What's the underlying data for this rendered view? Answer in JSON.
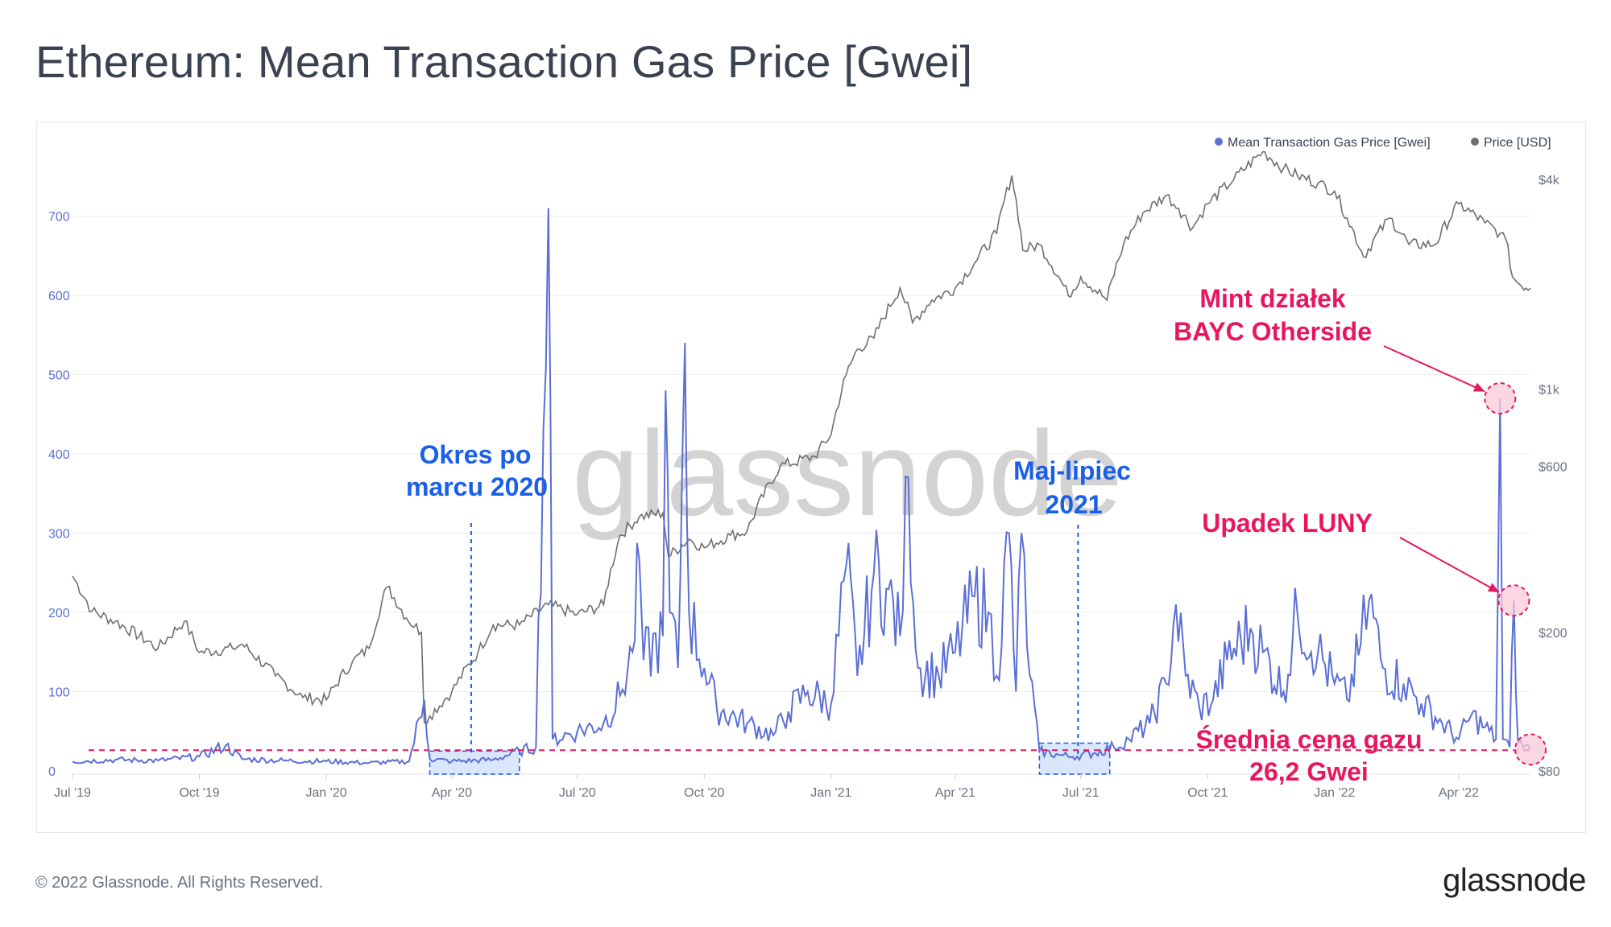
{
  "title": "Ethereum: Mean Transaction Gas Price [Gwei]",
  "footer": {
    "copyright": "© 2022 Glassnode. All Rights Reserved.",
    "logo": "glassnode"
  },
  "watermark": "glassnode",
  "colors": {
    "gas": "#5b6fd6",
    "price": "#6f6f6f",
    "annot_blue": "#1a5fe8",
    "annot_red": "#e8175d"
  },
  "chart_data": {
    "type": "line",
    "title": "Ethereum: Mean Transaction Gas Price [Gwei]",
    "legend": {
      "placement": "top-right",
      "items": [
        "Mean Transaction Gas Price [Gwei]",
        "Price [USD]"
      ]
    },
    "x_ticks": [
      "Jul '19",
      "Oct '19",
      "Jan '20",
      "Apr '20",
      "Jul '20",
      "Oct '20",
      "Jan '21",
      "Apr '21",
      "Jul '21",
      "Oct '21",
      "Jan '22",
      "Apr '22"
    ],
    "x_range": [
      "2019-07-01",
      "2022-05-23"
    ],
    "y_left": {
      "ticks": [
        0,
        100,
        200,
        300,
        400,
        500,
        600,
        700
      ],
      "range": [
        0,
        800
      ],
      "grid": true
    },
    "y_right": {
      "ticks": [
        "$80",
        "$200",
        "$600",
        "$1k",
        "$4k"
      ],
      "tick_values": [
        80,
        200,
        600,
        1000,
        4000
      ],
      "scale": "log",
      "range": [
        80,
        5300
      ]
    },
    "series": [
      {
        "name": "Mean Transaction Gas Price [Gwei]",
        "axis": "left",
        "points": [
          [
            "2019-07-01",
            12
          ],
          [
            "2019-08-01",
            14
          ],
          [
            "2019-09-01",
            13
          ],
          [
            "2019-10-01",
            18
          ],
          [
            "2019-10-20",
            32
          ],
          [
            "2019-11-01",
            15
          ],
          [
            "2019-12-01",
            13
          ],
          [
            "2020-01-01",
            12
          ],
          [
            "2020-02-01",
            10
          ],
          [
            "2020-03-01",
            12
          ],
          [
            "2020-03-12",
            90
          ],
          [
            "2020-03-16",
            15
          ],
          [
            "2020-04-01",
            12
          ],
          [
            "2020-05-01",
            14
          ],
          [
            "2020-05-20",
            25
          ],
          [
            "2020-06-01",
            30
          ],
          [
            "2020-06-10",
            710
          ],
          [
            "2020-06-13",
            40
          ],
          [
            "2020-07-01",
            50
          ],
          [
            "2020-07-20",
            60
          ],
          [
            "2020-08-01",
            95
          ],
          [
            "2020-08-10",
            150
          ],
          [
            "2020-08-15",
            265
          ],
          [
            "2020-08-18",
            140
          ],
          [
            "2020-09-01",
            170
          ],
          [
            "2020-09-03",
            480
          ],
          [
            "2020-09-06",
            200
          ],
          [
            "2020-09-12",
            130
          ],
          [
            "2020-09-17",
            540
          ],
          [
            "2020-09-20",
            200
          ],
          [
            "2020-10-01",
            130
          ],
          [
            "2020-10-10",
            80
          ],
          [
            "2020-11-01",
            60
          ],
          [
            "2020-11-20",
            45
          ],
          [
            "2020-12-01",
            75
          ],
          [
            "2020-12-15",
            100
          ],
          [
            "2021-01-01",
            85
          ],
          [
            "2021-01-12",
            260
          ],
          [
            "2021-01-20",
            120
          ],
          [
            "2021-02-01",
            250
          ],
          [
            "2021-02-10",
            230
          ],
          [
            "2021-02-20",
            170
          ],
          [
            "2021-02-26",
            370
          ],
          [
            "2021-03-05",
            130
          ],
          [
            "2021-03-20",
            120
          ],
          [
            "2021-04-01",
            150
          ],
          [
            "2021-04-15",
            220
          ],
          [
            "2021-04-25",
            200
          ],
          [
            "2021-05-01",
            120
          ],
          [
            "2021-05-10",
            300
          ],
          [
            "2021-05-15",
            100
          ],
          [
            "2021-05-19",
            300
          ],
          [
            "2021-05-25",
            120
          ],
          [
            "2021-06-01",
            25
          ],
          [
            "2021-06-15",
            20
          ],
          [
            "2021-06-25",
            18
          ],
          [
            "2021-07-10",
            22
          ],
          [
            "2021-07-25",
            30
          ],
          [
            "2021-08-05",
            40
          ],
          [
            "2021-08-20",
            60
          ],
          [
            "2021-09-01",
            110
          ],
          [
            "2021-09-08",
            210
          ],
          [
            "2021-09-15",
            120
          ],
          [
            "2021-09-25",
            80
          ],
          [
            "2021-10-05",
            90
          ],
          [
            "2021-10-15",
            140
          ],
          [
            "2021-11-01",
            180
          ],
          [
            "2021-11-10",
            150
          ],
          [
            "2021-11-25",
            100
          ],
          [
            "2021-12-05",
            200
          ],
          [
            "2021-12-20",
            150
          ],
          [
            "2022-01-01",
            110
          ],
          [
            "2022-01-10",
            90
          ],
          [
            "2022-01-20",
            160
          ],
          [
            "2022-01-26",
            215
          ],
          [
            "2022-02-05",
            130
          ],
          [
            "2022-02-20",
            110
          ],
          [
            "2022-03-05",
            85
          ],
          [
            "2022-03-20",
            60
          ],
          [
            "2022-04-01",
            40
          ],
          [
            "2022-04-10",
            70
          ],
          [
            "2022-04-20",
            55
          ],
          [
            "2022-04-28",
            40
          ],
          [
            "2022-05-01",
            470
          ],
          [
            "2022-05-03",
            40
          ],
          [
            "2022-05-08",
            30
          ],
          [
            "2022-05-11",
            215
          ],
          [
            "2022-05-14",
            35
          ],
          [
            "2022-05-23",
            27
          ]
        ]
      },
      {
        "name": "Price [USD]",
        "axis": "right",
        "points": [
          [
            "2019-07-01",
            290
          ],
          [
            "2019-07-15",
            230
          ],
          [
            "2019-08-01",
            215
          ],
          [
            "2019-09-01",
            180
          ],
          [
            "2019-09-20",
            215
          ],
          [
            "2019-10-01",
            175
          ],
          [
            "2019-10-25",
            180
          ],
          [
            "2019-11-01",
            185
          ],
          [
            "2019-11-25",
            150
          ],
          [
            "2019-12-15",
            130
          ],
          [
            "2020-01-01",
            128
          ],
          [
            "2020-01-20",
            165
          ],
          [
            "2020-02-01",
            180
          ],
          [
            "2020-02-14",
            270
          ],
          [
            "2020-02-28",
            220
          ],
          [
            "2020-03-10",
            200
          ],
          [
            "2020-03-12",
            110
          ],
          [
            "2020-03-16",
            115
          ],
          [
            "2020-04-01",
            135
          ],
          [
            "2020-04-20",
            175
          ],
          [
            "2020-05-01",
            210
          ],
          [
            "2020-05-20",
            210
          ],
          [
            "2020-06-10",
            240
          ],
          [
            "2020-07-01",
            225
          ],
          [
            "2020-07-20",
            240
          ],
          [
            "2020-08-01",
            380
          ],
          [
            "2020-08-15",
            430
          ],
          [
            "2020-09-01",
            440
          ],
          [
            "2020-09-05",
            330
          ],
          [
            "2020-09-20",
            370
          ],
          [
            "2020-10-01",
            350
          ],
          [
            "2020-10-20",
            380
          ],
          [
            "2020-11-01",
            390
          ],
          [
            "2020-11-25",
            600
          ],
          [
            "2020-12-20",
            640
          ],
          [
            "2021-01-01",
            740
          ],
          [
            "2021-01-12",
            1100
          ],
          [
            "2021-01-20",
            1300
          ],
          [
            "2021-02-01",
            1400
          ],
          [
            "2021-02-20",
            1950
          ],
          [
            "2021-03-01",
            1550
          ],
          [
            "2021-03-15",
            1800
          ],
          [
            "2021-04-01",
            1950
          ],
          [
            "2021-04-15",
            2300
          ],
          [
            "2021-05-01",
            2800
          ],
          [
            "2021-05-12",
            4100
          ],
          [
            "2021-05-20",
            2500
          ],
          [
            "2021-06-01",
            2600
          ],
          [
            "2021-06-22",
            1850
          ],
          [
            "2021-07-01",
            2100
          ],
          [
            "2021-07-20",
            1800
          ],
          [
            "2021-08-01",
            2600
          ],
          [
            "2021-08-15",
            3200
          ],
          [
            "2021-09-01",
            3600
          ],
          [
            "2021-09-10",
            3300
          ],
          [
            "2021-09-20",
            2900
          ],
          [
            "2021-10-01",
            3400
          ],
          [
            "2021-10-20",
            4000
          ],
          [
            "2021-11-10",
            4800
          ],
          [
            "2021-11-25",
            4300
          ],
          [
            "2021-12-05",
            4100
          ],
          [
            "2021-12-20",
            3900
          ],
          [
            "2022-01-01",
            3700
          ],
          [
            "2022-01-10",
            3100
          ],
          [
            "2022-01-22",
            2400
          ],
          [
            "2022-02-10",
            3100
          ],
          [
            "2022-02-24",
            2600
          ],
          [
            "2022-03-15",
            2600
          ],
          [
            "2022-04-01",
            3400
          ],
          [
            "2022-04-20",
            3000
          ],
          [
            "2022-05-01",
            2800
          ],
          [
            "2022-05-05",
            2700
          ],
          [
            "2022-05-10",
            2100
          ],
          [
            "2022-05-15",
            2000
          ],
          [
            "2022-05-23",
            1950
          ]
        ]
      }
    ],
    "reference_line": {
      "value": 26.2,
      "axis": "left",
      "style": "dashed",
      "color": "#e8175d"
    },
    "highlight_ranges": [
      {
        "from": "2020-03-16",
        "to": "2020-05-20",
        "y_max": 25
      },
      {
        "from": "2021-06-01",
        "to": "2021-07-22",
        "y_max": 35
      }
    ],
    "annotations": [
      {
        "key": "okres",
        "lines": [
          "Okres po",
          "marcu 2020"
        ],
        "color": "blue",
        "marker_date": "2020-04-15"
      },
      {
        "key": "maj",
        "lines": [
          "Maj-lipiec",
          "2021"
        ],
        "color": "blue",
        "marker_date": "2021-06-29"
      },
      {
        "key": "mint",
        "lines": [
          "Mint działek",
          "BAYC Otherside"
        ],
        "color": "red",
        "target": [
          "2022-05-01",
          470
        ]
      },
      {
        "key": "luna",
        "lines": [
          "Upadek LUNY"
        ],
        "color": "red",
        "target": [
          "2022-05-11",
          215
        ]
      },
      {
        "key": "avg",
        "lines": [
          "Średnia cena gazu",
          "26,2 Gwei"
        ],
        "color": "red",
        "target": [
          "2022-05-23",
          27
        ]
      }
    ]
  }
}
